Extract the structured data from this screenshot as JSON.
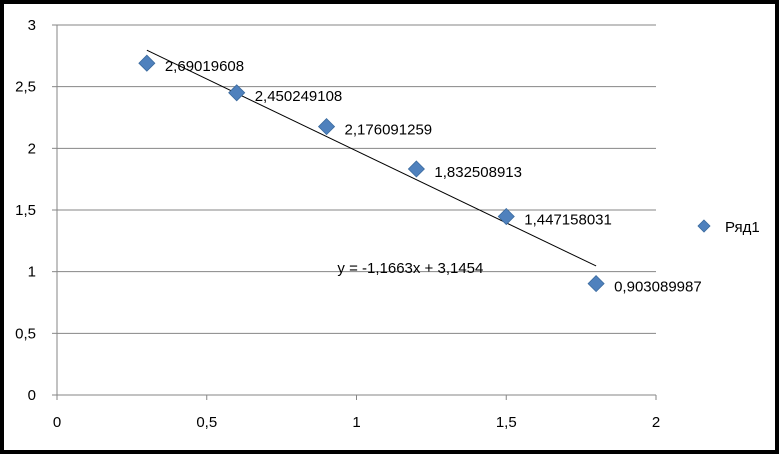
{
  "chart_data": {
    "type": "scatter",
    "title": "",
    "xlabel": "",
    "ylabel": "",
    "xlim": [
      0,
      2
    ],
    "ylim": [
      0,
      3
    ],
    "x_ticks": [
      "0",
      "0,5",
      "1",
      "1,5",
      "2"
    ],
    "y_ticks": [
      "0",
      "0,5",
      "1",
      "1,5",
      "2",
      "2,5",
      "3"
    ],
    "grid": "horizontal",
    "legend_position": "right",
    "marker_color": "#4F81BD",
    "series": [
      {
        "name": "Ряд1",
        "x": [
          0.3,
          0.6,
          0.9,
          1.2,
          1.5,
          1.8
        ],
        "y": [
          2.69019608,
          2.450249108,
          2.176091259,
          1.832508913,
          1.447158031,
          0.903089987
        ],
        "labels": [
          "2,69019608",
          "2,450249108",
          "2,176091259",
          "1,832508913",
          "1,447158031",
          "0,903089987"
        ]
      }
    ],
    "trendline": {
      "type": "linear",
      "slope": -1.1663,
      "intercept": 3.1454,
      "x_range": [
        0.3,
        1.8
      ],
      "equation": "y = -1,1663x + 3,1454"
    }
  }
}
